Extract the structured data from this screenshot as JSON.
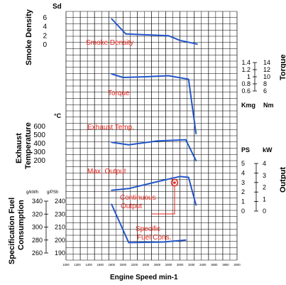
{
  "chart_data": {
    "type": "line",
    "x": {
      "label": "Engine Speed min-1",
      "ticks": [
        "1000",
        "1200",
        "1400",
        "1600",
        "1800",
        "2000",
        "2200",
        "2400",
        "2600",
        "2800",
        "3000",
        "3200",
        "3400",
        "3600",
        "3800",
        "4000"
      ],
      "range": [
        1000,
        4000
      ]
    },
    "panels": [
      {
        "id": "smoke",
        "ylabel": "Smoke Density",
        "unit": "Sd",
        "ticks": [
          "6",
          "4",
          "2",
          "0"
        ],
        "ylim": [
          0,
          7.5
        ],
        "series": [
          {
            "name": "Smoke Density",
            "points": [
              [
                1800,
                7.2
              ],
              [
                2050,
                3.0
              ],
              [
                2800,
                2.5
              ],
              [
                3000,
                1.2
              ],
              [
                3300,
                0.2
              ]
            ]
          }
        ]
      },
      {
        "id": "torque",
        "ylabel": "Torque",
        "unit_left": "Kmg",
        "unit_right": "Nm",
        "ticks_left": [
          "1.4",
          "1.2",
          "1",
          "0.8",
          "0.6"
        ],
        "ticks_right": [
          "14",
          "12",
          "10",
          "8",
          "6"
        ],
        "ylim": [
          0.6,
          1.4
        ],
        "series": [
          {
            "name": "Torque",
            "points": [
              [
                1800,
                1.08
              ],
              [
                2000,
                0.98
              ],
              [
                2400,
                1.0
              ],
              [
                2800,
                1.03
              ],
              [
                3150,
                0.93
              ],
              [
                3280,
                -0.6
              ]
            ]
          }
        ]
      },
      {
        "id": "exhaust",
        "ylabel": "Exhaust Temperature",
        "unit": "°C",
        "ticks": [
          "600",
          "500",
          "400",
          "300",
          "200"
        ],
        "ylim": [
          200,
          600
        ],
        "series": [
          {
            "name": "Exhaust Temp.",
            "points": [
              [
                1800,
                415
              ],
              [
                2100,
                385
              ],
              [
                2600,
                430
              ],
              [
                3100,
                445
              ],
              [
                3280,
                200
              ]
            ]
          }
        ]
      },
      {
        "id": "output",
        "ylabel": "Output",
        "unit_left": "PS",
        "unit_right": "kW",
        "ticks_left": [
          "5",
          "4",
          "3",
          "2",
          "1",
          "0"
        ],
        "ticks_right": [
          "4",
          "3",
          "2",
          "1",
          "0"
        ],
        "ylim": [
          0,
          5.5
        ],
        "series": [
          {
            "name": "Max. Output",
            "points": [
              [
                1800,
                2.4
              ],
              [
                2100,
                2.6
              ],
              [
                2600,
                3.4
              ],
              [
                3000,
                4.0
              ],
              [
                3150,
                3.9
              ],
              [
                3280,
                0.7
              ]
            ]
          }
        ],
        "annotations": [
          {
            "text": "Continuous Output",
            "at": [
              3000,
              3.4
            ]
          }
        ]
      },
      {
        "id": "sfc",
        "ylabel": "Specification Fuel Consumption",
        "unit_left": "g/kWh",
        "unit_right": "g/PSh",
        "ticks_left": [
          "340",
          "320",
          "300",
          "280",
          "260"
        ],
        "ticks_right": [
          "240",
          "230",
          "210",
          "200",
          "190"
        ],
        "ylim": [
          260,
          340
        ],
        "series": [
          {
            "name": "Specific Fuel Cons.",
            "points": [
              [
                1800,
                335
              ],
              [
                2100,
                276
              ],
              [
                2700,
                277
              ],
              [
                3100,
                280
              ]
            ]
          }
        ]
      }
    ],
    "labels": {
      "smoke_curve": "Smoke Density",
      "torque_curve": "Torque",
      "exhaust_curve": "Exhaust Temp.",
      "output_curve": "Max. Output",
      "continuous_line1": "Continuous",
      "continuous_line2": "Output",
      "sfc_line1": "Specific",
      "sfc_line2": "Fuel Cons."
    },
    "colors": {
      "curve": "#2356c9",
      "label": "#e8231a",
      "grid": "#000000"
    }
  }
}
